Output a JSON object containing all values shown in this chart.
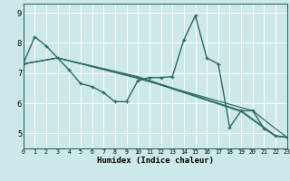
{
  "xlabel": "Humidex (Indice chaleur)",
  "bg_color": "#cce8e8",
  "line_color": "#2a6b60",
  "grid_color": "#ffffff",
  "xlim": [
    0,
    23
  ],
  "ylim": [
    4.5,
    9.3
  ],
  "yticks": [
    5,
    6,
    7,
    8,
    9
  ],
  "xticks": [
    0,
    1,
    2,
    3,
    4,
    5,
    6,
    7,
    8,
    9,
    10,
    11,
    12,
    13,
    14,
    15,
    16,
    17,
    18,
    19,
    20,
    21,
    22,
    23
  ],
  "main_x": [
    0,
    1,
    2,
    3,
    4,
    5,
    6,
    7,
    8,
    9,
    10,
    11,
    12,
    13,
    14,
    15,
    16,
    17,
    18,
    19,
    20,
    21,
    22,
    23
  ],
  "main_y": [
    7.3,
    8.2,
    7.9,
    7.5,
    7.1,
    6.65,
    6.55,
    6.35,
    6.05,
    6.05,
    6.75,
    6.85,
    6.85,
    6.88,
    8.1,
    8.9,
    7.5,
    7.3,
    5.2,
    5.75,
    5.75,
    5.15,
    4.92,
    4.87
  ],
  "trend1_x": [
    0,
    3,
    10,
    19,
    22,
    23
  ],
  "trend1_y": [
    7.3,
    7.5,
    6.88,
    5.75,
    4.92,
    4.87
  ],
  "trend2_x": [
    0,
    3,
    10,
    19,
    22,
    23
  ],
  "trend2_y": [
    7.3,
    7.5,
    6.85,
    5.72,
    4.9,
    4.87
  ],
  "trend3_x": [
    0,
    3,
    10,
    20,
    22,
    23
  ],
  "trend3_y": [
    7.3,
    7.5,
    6.82,
    5.75,
    5.15,
    4.87
  ]
}
